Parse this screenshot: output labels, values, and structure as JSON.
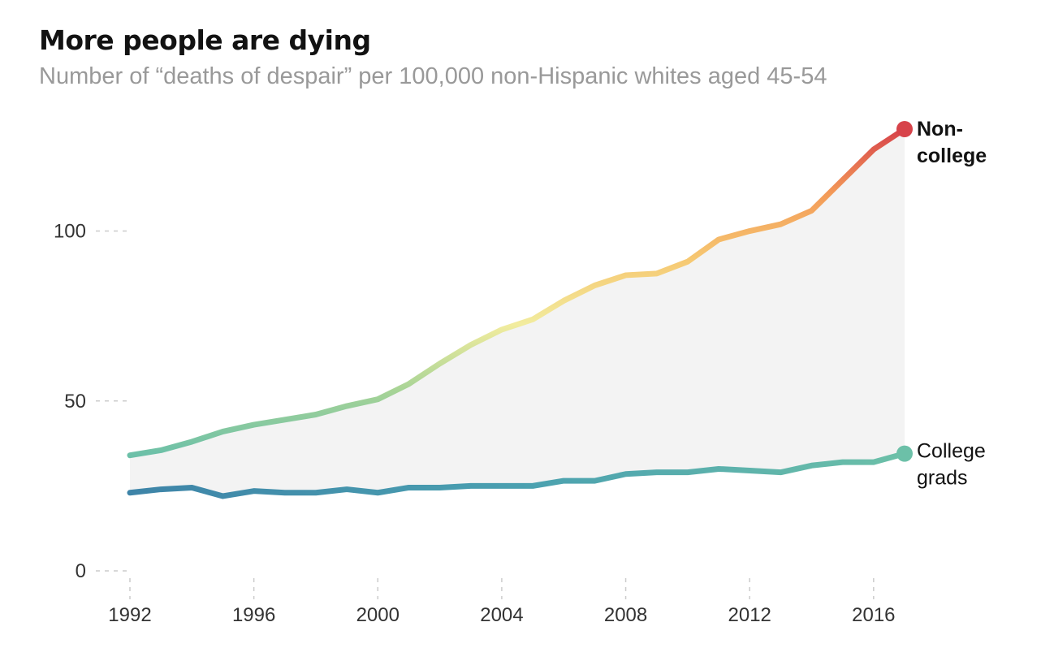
{
  "header": {
    "title": "More people are dying",
    "subtitle": "Number of “deaths of despair” per 100,000 non-Hispanic whites aged 45-54"
  },
  "colors": {
    "grid": "#cccccc",
    "gap_fill": "#f3f3f3",
    "non_college_gradient": [
      "#6cc0a8",
      "#a8d496",
      "#f2ec9e",
      "#f6c872",
      "#f39b58",
      "#d7434a"
    ],
    "college_gradient": [
      "#3e84a8",
      "#4aa0b0",
      "#6cc0a8"
    ],
    "non_college_end": "#d7434a",
    "college_end": "#6cc0a8"
  },
  "chart_data": {
    "type": "line",
    "title": "More people are dying",
    "subtitle": "Number of “deaths of despair” per 100,000 non-Hispanic whites aged 45-54",
    "x": [
      1992,
      1993,
      1994,
      1995,
      1996,
      1997,
      1998,
      1999,
      2000,
      2001,
      2002,
      2003,
      2004,
      2005,
      2006,
      2007,
      2008,
      2009,
      2010,
      2011,
      2012,
      2013,
      2014,
      2015,
      2016,
      2017
    ],
    "xlim": [
      1992,
      2017
    ],
    "ylim": [
      0,
      130
    ],
    "x_ticks": [
      1992,
      1996,
      2000,
      2004,
      2008,
      2012,
      2016
    ],
    "x_tick_labels": [
      "1992",
      "1996",
      "2000",
      "2004",
      "2008",
      "2012",
      "2016"
    ],
    "y_ticks": [
      0,
      50,
      100
    ],
    "y_tick_labels": [
      "0",
      "50",
      "100"
    ],
    "grid": true,
    "series": [
      {
        "label_lines": [
          "Non-",
          "college"
        ],
        "values": [
          34,
          35.5,
          38,
          41,
          43,
          44.5,
          46,
          48.5,
          50.5,
          55,
          61,
          66.5,
          71,
          74,
          79.5,
          84,
          87,
          87.5,
          91,
          97.5,
          100,
          102,
          106,
          115,
          124,
          130
        ]
      },
      {
        "label_lines": [
          "College",
          "grads"
        ],
        "values": [
          23,
          24,
          24.5,
          22,
          23.5,
          23,
          23,
          24,
          23,
          24.5,
          24.5,
          25,
          25,
          25,
          26.5,
          26.5,
          28.5,
          29,
          29,
          30,
          29.5,
          29,
          31,
          32,
          32,
          34.5
        ]
      }
    ]
  }
}
